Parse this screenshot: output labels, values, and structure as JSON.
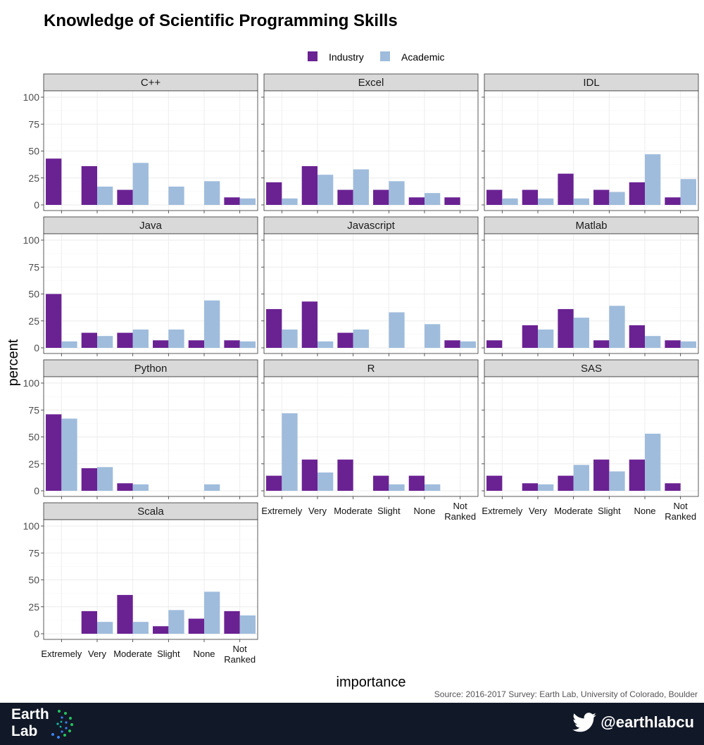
{
  "title": "Knowledge of Scientific Programming Skills",
  "source": "Source: 2016-2017 Survey: Earth Lab, University of Colorado, Boulder",
  "footer": {
    "logo_line1": "Earth",
    "logo_line2": "Lab",
    "logo_icon": "dots-circle-icon",
    "twitter_handle": "@earthlabcu",
    "twitter_icon": "twitter-bird-icon"
  },
  "colors": {
    "industry": "#6a2293",
    "academic": "#9fbcdc",
    "strip": "#d9d9d9",
    "footer": "#111827"
  },
  "chart_data": {
    "type": "bar",
    "xlabel": "importance",
    "ylabel": "percent",
    "ylim": [
      0,
      100
    ],
    "yticks": [
      0,
      25,
      50,
      75,
      100
    ],
    "categories": [
      "Extremely",
      "Very",
      "Moderate",
      "Slight",
      "None",
      "Not Ranked"
    ],
    "legend": {
      "position": "top",
      "entries": [
        "Industry",
        "Academic"
      ]
    },
    "grid": true,
    "facets": [
      {
        "name": "C++",
        "series": [
          {
            "name": "Industry",
            "values": [
              43,
              36,
              14,
              0,
              0,
              7
            ]
          },
          {
            "name": "Academic",
            "values": [
              0,
              17,
              39,
              17,
              22,
              6
            ]
          }
        ]
      },
      {
        "name": "Excel",
        "series": [
          {
            "name": "Industry",
            "values": [
              21,
              36,
              14,
              14,
              7,
              7
            ]
          },
          {
            "name": "Academic",
            "values": [
              6,
              28,
              33,
              22,
              11,
              0
            ]
          }
        ]
      },
      {
        "name": "IDL",
        "series": [
          {
            "name": "Industry",
            "values": [
              14,
              14,
              29,
              14,
              21,
              7
            ]
          },
          {
            "name": "Academic",
            "values": [
              6,
              6,
              6,
              12,
              47,
              24
            ]
          }
        ]
      },
      {
        "name": "Java",
        "series": [
          {
            "name": "Industry",
            "values": [
              50,
              14,
              14,
              7,
              7,
              7
            ]
          },
          {
            "name": "Academic",
            "values": [
              6,
              11,
              17,
              17,
              44,
              6
            ]
          }
        ]
      },
      {
        "name": "Javascript",
        "series": [
          {
            "name": "Industry",
            "values": [
              36,
              43,
              14,
              0,
              0,
              7
            ]
          },
          {
            "name": "Academic",
            "values": [
              17,
              6,
              17,
              33,
              22,
              6
            ]
          }
        ]
      },
      {
        "name": "Matlab",
        "series": [
          {
            "name": "Industry",
            "values": [
              7,
              21,
              36,
              7,
              21,
              7
            ]
          },
          {
            "name": "Academic",
            "values": [
              0,
              17,
              28,
              39,
              11,
              6
            ]
          }
        ]
      },
      {
        "name": "Python",
        "series": [
          {
            "name": "Industry",
            "values": [
              71,
              21,
              7,
              0,
              0,
              0
            ]
          },
          {
            "name": "Academic",
            "values": [
              67,
              22,
              6,
              0,
              6,
              0
            ]
          }
        ]
      },
      {
        "name": "R",
        "series": [
          {
            "name": "Industry",
            "values": [
              14,
              29,
              29,
              14,
              14,
              0
            ]
          },
          {
            "name": "Academic",
            "values": [
              72,
              17,
              0,
              6,
              6,
              0
            ]
          }
        ]
      },
      {
        "name": "SAS",
        "series": [
          {
            "name": "Industry",
            "values": [
              14,
              7,
              14,
              29,
              29,
              7
            ]
          },
          {
            "name": "Academic",
            "values": [
              0,
              6,
              24,
              18,
              53,
              0
            ]
          }
        ]
      },
      {
        "name": "Scala",
        "series": [
          {
            "name": "Industry",
            "values": [
              0,
              21,
              36,
              7,
              14,
              21
            ]
          },
          {
            "name": "Academic",
            "values": [
              0,
              11,
              11,
              22,
              39,
              17
            ]
          }
        ]
      }
    ]
  }
}
